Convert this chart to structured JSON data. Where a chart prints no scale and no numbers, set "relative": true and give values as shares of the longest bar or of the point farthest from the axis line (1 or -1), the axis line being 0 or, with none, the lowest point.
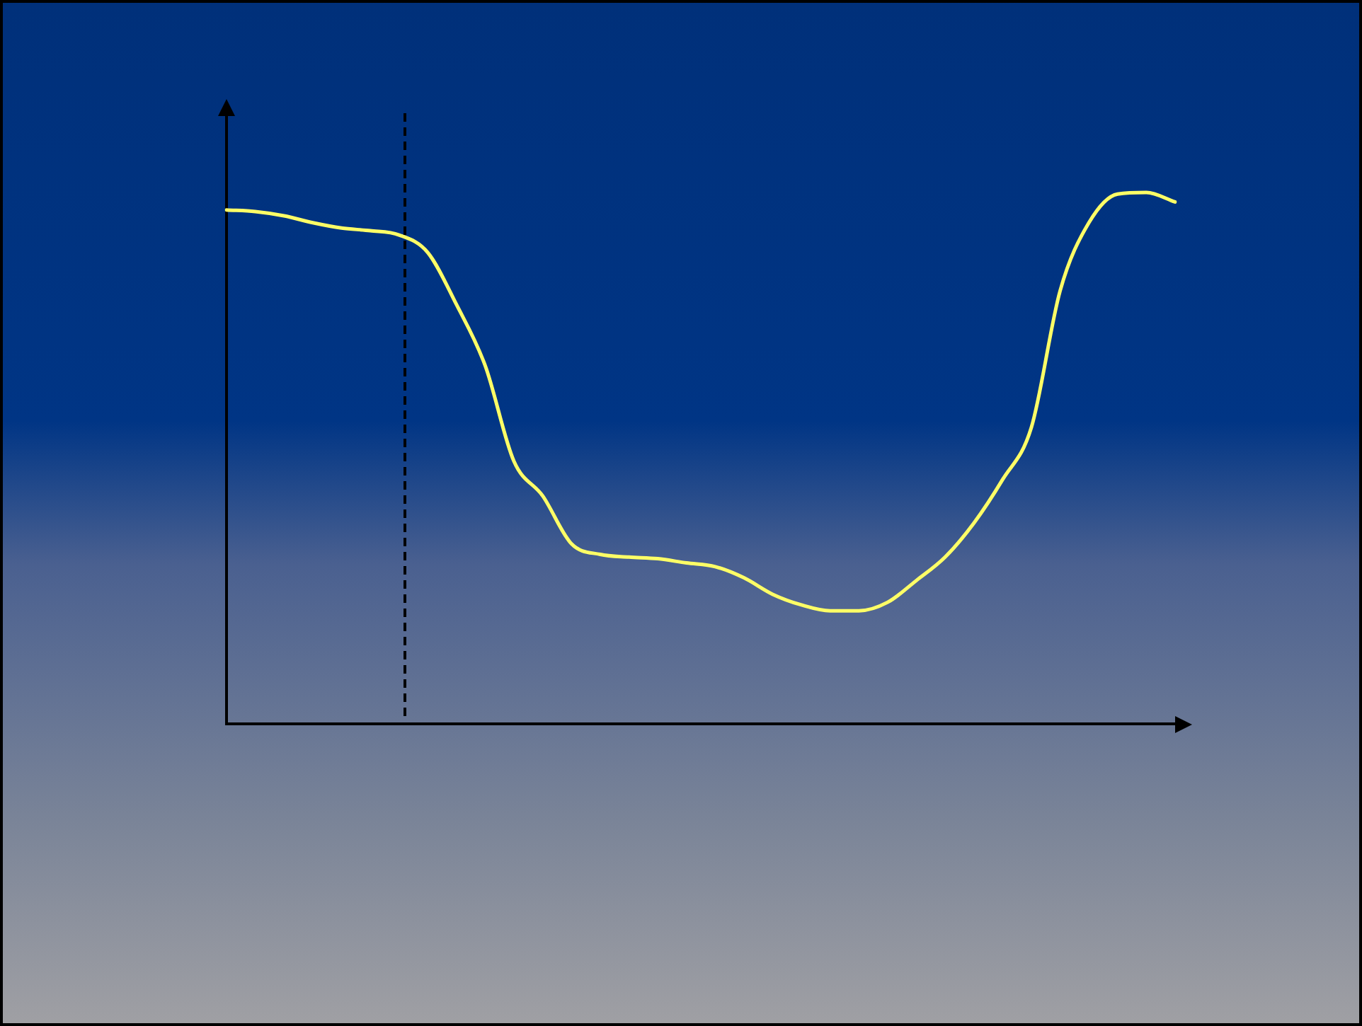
{
  "chart_data": {
    "type": "line",
    "relative": true,
    "grid": false,
    "legend": false,
    "marker": "none",
    "line_style": "solid",
    "categories": [
      null,
      null,
      null,
      null,
      null,
      null,
      null,
      null,
      null,
      null,
      null,
      null,
      null,
      null,
      null,
      null,
      null,
      null,
      null,
      null,
      null,
      null,
      null,
      null,
      null,
      null,
      null,
      null,
      null,
      null,
      null,
      null,
      null,
      null
    ],
    "series": [
      {
        "color": "#ffff66",
        "values": [
          0.967,
          0.964,
          0.956,
          0.943,
          0.933,
          0.928,
          0.92,
          0.887,
          0.789,
          0.674,
          0.494,
          0.429,
          0.339,
          0.319,
          0.314,
          0.311,
          0.303,
          0.296,
          0.275,
          0.244,
          0.224,
          0.213,
          0.213,
          0.229,
          0.27,
          0.314,
          0.378,
          0.46,
          0.558,
          0.815,
          0.943,
          0.997,
          1,
          0.982
        ]
      }
    ]
  }
}
